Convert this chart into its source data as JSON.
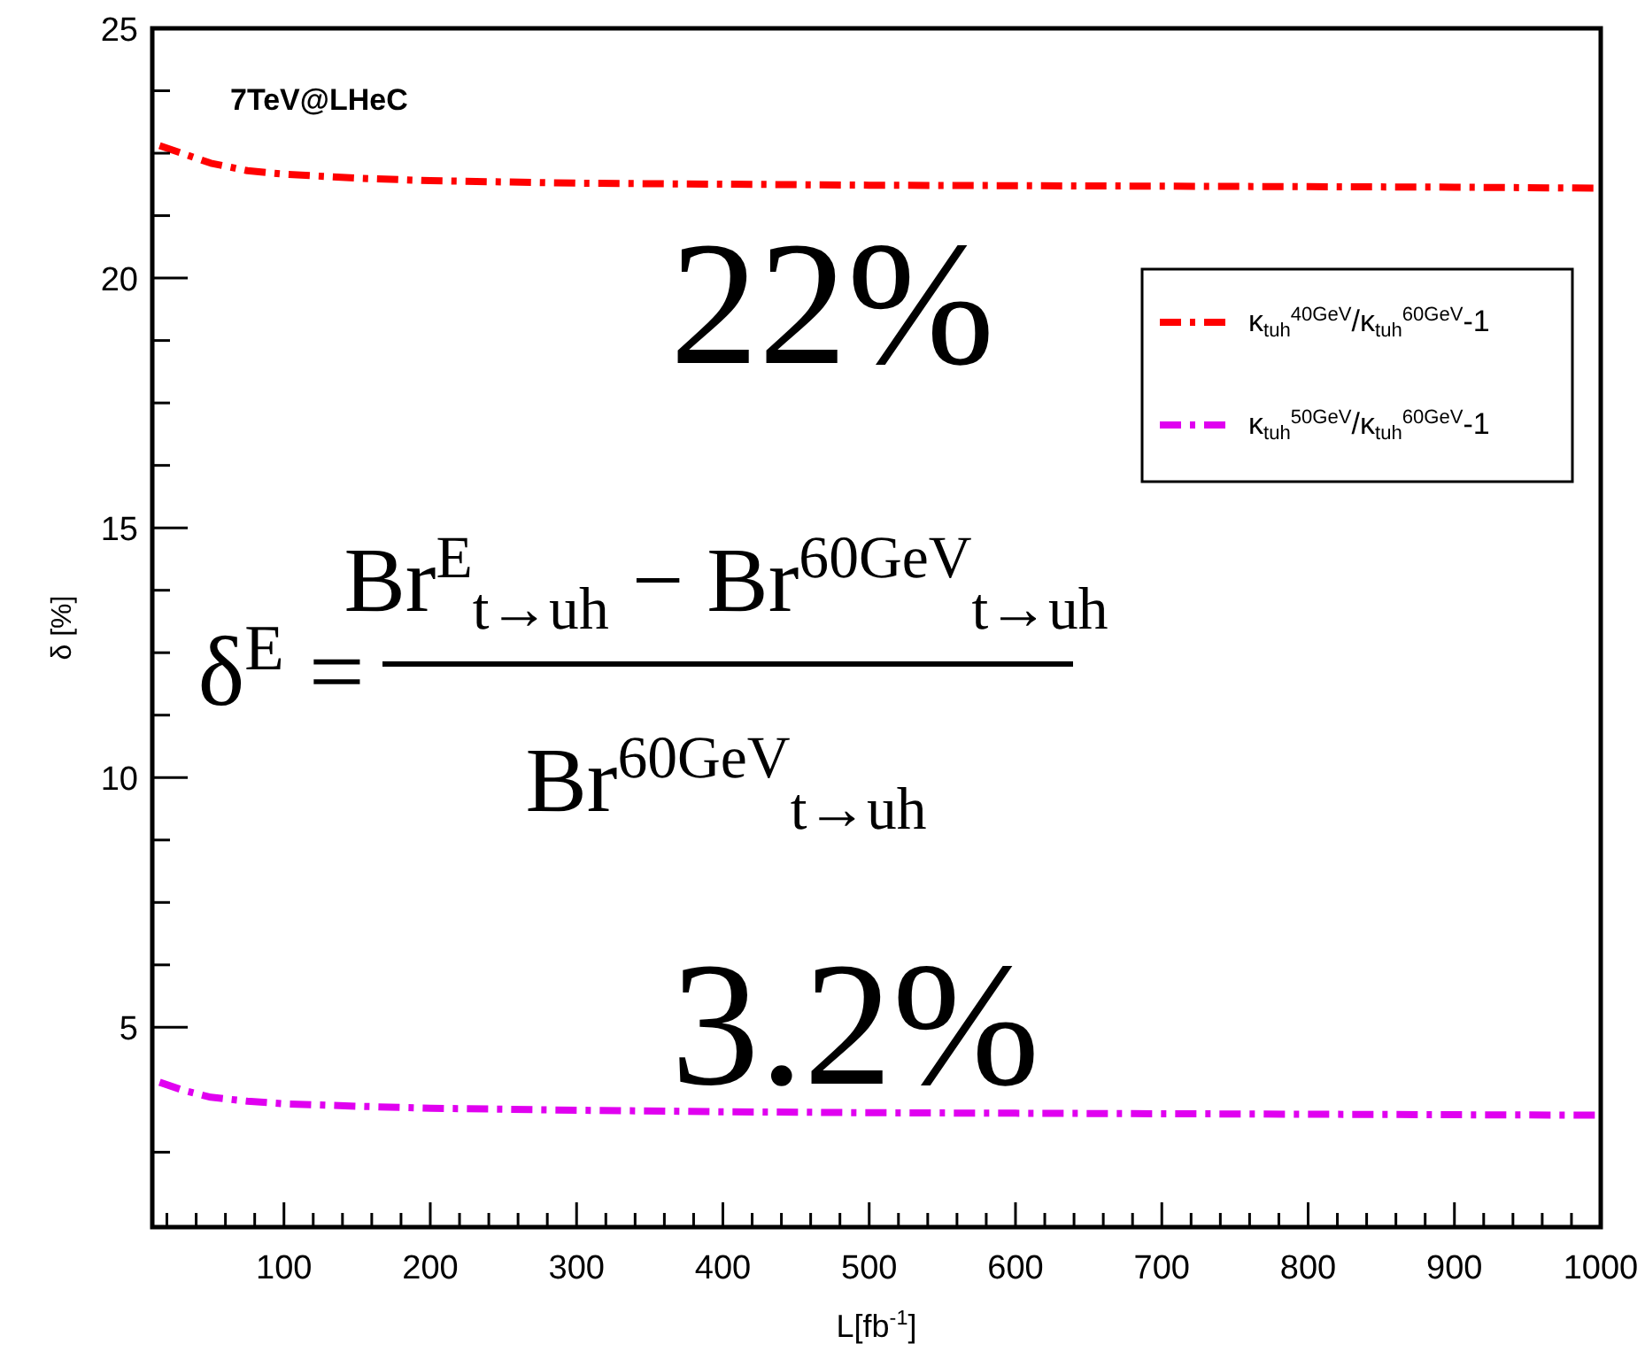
{
  "chart_data": {
    "type": "line",
    "xlabel": "L[fb$^{-1}$]",
    "ylabel": "δ [%]",
    "x": [
      15,
      30,
      50,
      75,
      100,
      150,
      200,
      300,
      400,
      500,
      600,
      700,
      800,
      900,
      1000
    ],
    "series": [
      {
        "name": "κ$_{tuh}$$^{40GeV}$/κ$_{tuh}$$^{60GeV}$-1",
        "color": "#ff0000",
        "values": [
          22.65,
          22.5,
          22.3,
          22.15,
          22.08,
          22.0,
          21.95,
          21.9,
          21.88,
          21.86,
          21.85,
          21.84,
          21.83,
          21.82,
          21.8
        ]
      },
      {
        "name": "κ$_{tuh}$$^{50GeV}$/κ$_{tuh}$$^{60GeV}$-1",
        "color": "#e000f0",
        "values": [
          3.9,
          3.75,
          3.6,
          3.52,
          3.47,
          3.42,
          3.38,
          3.34,
          3.31,
          3.29,
          3.28,
          3.27,
          3.26,
          3.25,
          3.24
        ]
      }
    ],
    "xlim": [
      10,
      1000
    ],
    "xticks": [
      {
        "value": 20,
        "label": null
      },
      {
        "value": 40,
        "label": null
      },
      {
        "value": 60,
        "label": null
      },
      {
        "value": 80,
        "label": null
      },
      100,
      {
        "value": 120,
        "label": null
      },
      {
        "value": 140,
        "label": null
      },
      {
        "value": 160,
        "label": null
      },
      {
        "value": 180,
        "label": null
      },
      200,
      {
        "value": 220,
        "label": null
      },
      {
        "value": 240,
        "label": null
      },
      {
        "value": 260,
        "label": null
      },
      {
        "value": 280,
        "label": null
      },
      300,
      {
        "value": 320,
        "label": null
      },
      {
        "value": 340,
        "label": null
      },
      {
        "value": 360,
        "label": null
      },
      {
        "value": 380,
        "label": null
      },
      400,
      {
        "value": 420,
        "label": null
      },
      {
        "value": 440,
        "label": null
      },
      {
        "value": 460,
        "label": null
      },
      {
        "value": 480,
        "label": null
      },
      500,
      {
        "value": 520,
        "label": null
      },
      {
        "value": 540,
        "label": null
      },
      {
        "value": 560,
        "label": null
      },
      {
        "value": 580,
        "label": null
      },
      600,
      {
        "value": 620,
        "label": null
      },
      {
        "value": 640,
        "label": null
      },
      {
        "value": 660,
        "label": null
      },
      {
        "value": 680,
        "label": null
      },
      700,
      {
        "value": 720,
        "label": null
      },
      {
        "value": 740,
        "label": null
      },
      {
        "value": 760,
        "label": null
      },
      {
        "value": 780,
        "label": null
      },
      800,
      {
        "value": 820,
        "label": null
      },
      {
        "value": 840,
        "label": null
      },
      {
        "value": 860,
        "label": null
      },
      {
        "value": 880,
        "label": null
      },
      900,
      {
        "value": 920,
        "label": null
      },
      {
        "value": 940,
        "label": null
      },
      {
        "value": 960,
        "label": null
      },
      {
        "value": 980,
        "label": null
      },
      1000
    ],
    "ylim": [
      1,
      25
    ],
    "yticks": [
      {
        "value": 2.5,
        "label": null
      },
      5,
      {
        "value": 6.25,
        "label": null
      },
      {
        "value": 7.5,
        "label": null
      },
      {
        "value": 8.75,
        "label": null
      },
      10,
      {
        "value": 11.25,
        "label": null
      },
      {
        "value": 12.5,
        "label": null
      },
      {
        "value": 13.75,
        "label": null
      },
      15,
      {
        "value": 16.25,
        "label": null
      },
      {
        "value": 17.5,
        "label": null
      },
      {
        "value": 18.75,
        "label": null
      },
      20,
      {
        "value": 21.25,
        "label": null
      },
      {
        "value": 22.5,
        "label": null
      },
      {
        "value": 23.75,
        "label": null
      },
      25
    ],
    "grid": false,
    "legend": "right",
    "marker": "none",
    "line_style": "dashdot",
    "annotations": [
      "7TeV@LHeC",
      "22%",
      "3.2%",
      "δ$^{E}$ =",
      "Br$^{E}$$_{t→uh}$ − Br$^{60GeV}$$_{t→uh}$",
      "Br$^{60GeV}$$_{t→uh}$"
    ]
  }
}
